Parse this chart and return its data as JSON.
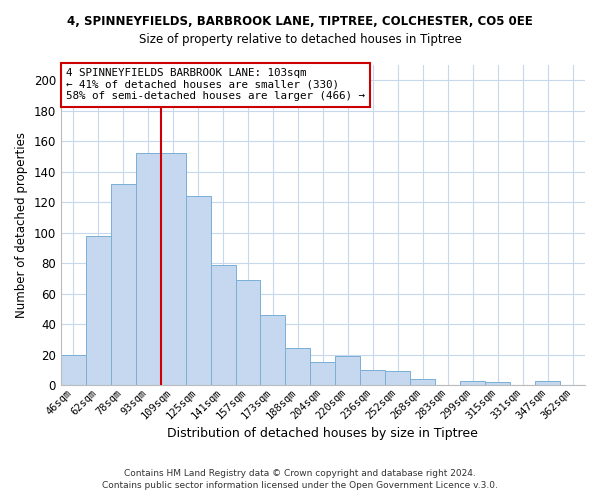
{
  "title_line1": "4, SPINNEYFIELDS, BARBROOK LANE, TIPTREE, COLCHESTER, CO5 0EE",
  "title_line2": "Size of property relative to detached houses in Tiptree",
  "xlabel": "Distribution of detached houses by size in Tiptree",
  "ylabel": "Number of detached properties",
  "bar_labels": [
    "46sqm",
    "62sqm",
    "78sqm",
    "93sqm",
    "109sqm",
    "125sqm",
    "141sqm",
    "157sqm",
    "173sqm",
    "188sqm",
    "204sqm",
    "220sqm",
    "236sqm",
    "252sqm",
    "268sqm",
    "283sqm",
    "299sqm",
    "315sqm",
    "331sqm",
    "347sqm",
    "362sqm"
  ],
  "bar_values": [
    20,
    98,
    132,
    152,
    152,
    124,
    79,
    69,
    46,
    24,
    15,
    19,
    10,
    9,
    4,
    0,
    3,
    2,
    0,
    3,
    0
  ],
  "bar_color": "#c5d8f0",
  "bar_edge_color": "#7aafd4",
  "vline_x_index": 3,
  "vline_color": "#cc0000",
  "annotation_text": "4 SPINNEYFIELDS BARBROOK LANE: 103sqm\n← 41% of detached houses are smaller (330)\n58% of semi-detached houses are larger (466) →",
  "annotation_box_color": "#ffffff",
  "annotation_box_edge": "#cc0000",
  "ylim": [
    0,
    210
  ],
  "yticks": [
    0,
    20,
    40,
    60,
    80,
    100,
    120,
    140,
    160,
    180,
    200
  ],
  "footnote1": "Contains HM Land Registry data © Crown copyright and database right 2024.",
  "footnote2": "Contains public sector information licensed under the Open Government Licence v.3.0.",
  "background_color": "#ffffff",
  "grid_color": "#c8d8ec"
}
